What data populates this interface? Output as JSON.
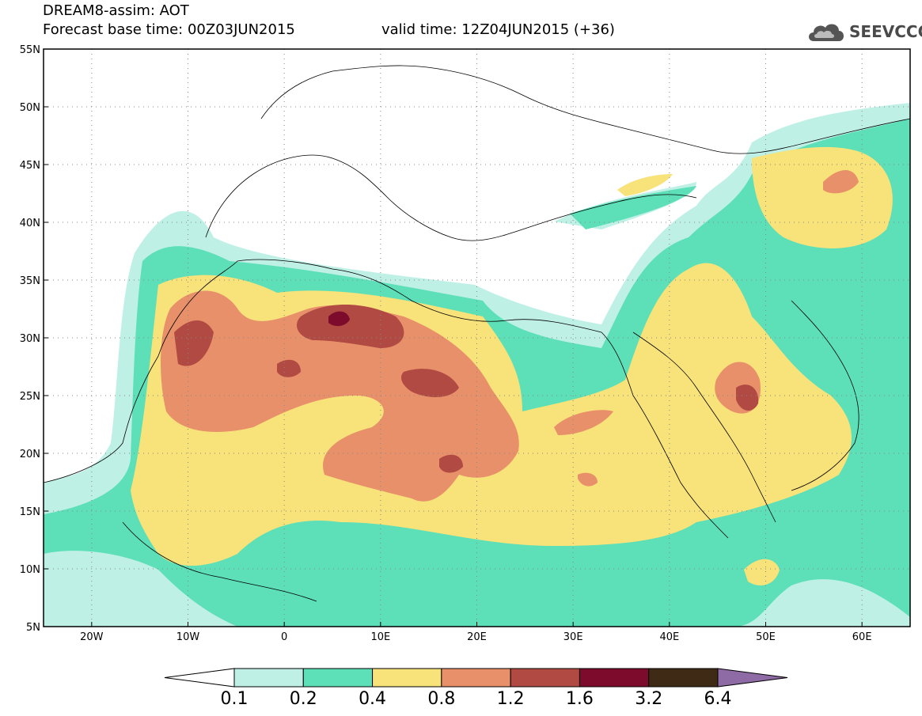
{
  "header": {
    "title": "DREAM8-assim: AOT",
    "base_time": "Forecast base time: 00Z03JUN2015",
    "valid_time": "valid time: 12Z04JUN2015 (+36)",
    "logo_text": "SEEVCCC",
    "logo_icon": "cloud-icon"
  },
  "map": {
    "lon_range": [
      -25,
      65
    ],
    "lat_range": [
      5,
      55
    ],
    "lat_ticks": [
      {
        "value": 55,
        "label": "55N"
      },
      {
        "value": 50,
        "label": "50N"
      },
      {
        "value": 45,
        "label": "45N"
      },
      {
        "value": 40,
        "label": "40N"
      },
      {
        "value": 35,
        "label": "35N"
      },
      {
        "value": 30,
        "label": "30N"
      },
      {
        "value": 25,
        "label": "25N"
      },
      {
        "value": 20,
        "label": "20N"
      },
      {
        "value": 15,
        "label": "15N"
      },
      {
        "value": 10,
        "label": "10N"
      },
      {
        "value": 5,
        "label": "5N"
      }
    ],
    "lon_ticks": [
      {
        "value": -20,
        "label": "20W"
      },
      {
        "value": -10,
        "label": "10W"
      },
      {
        "value": 0,
        "label": "0"
      },
      {
        "value": 10,
        "label": "10E"
      },
      {
        "value": 20,
        "label": "20E"
      },
      {
        "value": 30,
        "label": "30E"
      },
      {
        "value": 40,
        "label": "40E"
      },
      {
        "value": 50,
        "label": "50E"
      },
      {
        "value": 60,
        "label": "60E"
      }
    ],
    "grid": "dotted"
  },
  "colorbar": {
    "labels": [
      "0.1",
      "0.2",
      "0.4",
      "0.8",
      "1.2",
      "1.6",
      "3.2",
      "6.4"
    ],
    "colors": [
      "#ffffff",
      "#bff0e6",
      "#5ddfb8",
      "#f8e27a",
      "#e8906a",
      "#b04a42",
      "#7d0b2c",
      "#3f2a16",
      "#8e6ba5"
    ]
  }
}
